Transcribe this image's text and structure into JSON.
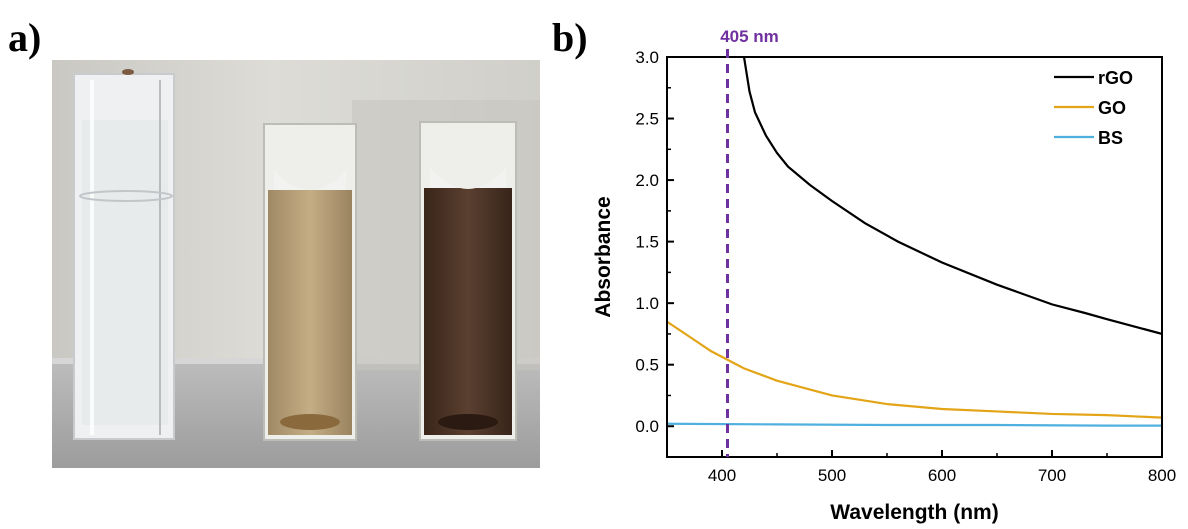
{
  "panels": {
    "a_label": "a)",
    "b_label": "b)"
  },
  "photo": {
    "description_icon": "cuvette-photo",
    "colors": {
      "background_top": "#d9d8d3",
      "bench": "#a8a8a8",
      "clear_liquid": "#eef0f1",
      "go_liquid": "#b59e78",
      "rgo_liquid": "#4a3427"
    }
  },
  "chart_data": {
    "type": "line",
    "xlabel": "Wavelength (nm)",
    "ylabel": "Absorbance",
    "xlim": [
      350,
      800
    ],
    "ylim": [
      -0.25,
      3.0
    ],
    "xticks": [
      400,
      500,
      600,
      700,
      800
    ],
    "yticks": [
      0.0,
      0.5,
      1.0,
      1.5,
      2.0,
      2.5,
      3.0
    ],
    "ytick_labels": [
      "0.0",
      "0.5",
      "1.0",
      "1.5",
      "2.0",
      "2.5",
      "3.0"
    ],
    "legend_position": "top-right",
    "annotation": {
      "text": "405 nm",
      "x": 405,
      "color": "#7030a0"
    },
    "series": [
      {
        "name": "rGO",
        "color": "#000000",
        "x": [
          420,
          425,
          430,
          440,
          450,
          460,
          480,
          500,
          530,
          560,
          600,
          650,
          700,
          730,
          750,
          800
        ],
        "y": [
          3.0,
          2.72,
          2.55,
          2.36,
          2.22,
          2.11,
          1.96,
          1.83,
          1.65,
          1.5,
          1.33,
          1.15,
          0.99,
          0.92,
          0.87,
          0.75
        ]
      },
      {
        "name": "GO",
        "color": "#e3a417",
        "x": [
          350,
          370,
          390,
          405,
          420,
          450,
          500,
          550,
          600,
          650,
          700,
          750,
          800
        ],
        "y": [
          0.85,
          0.73,
          0.61,
          0.54,
          0.47,
          0.37,
          0.25,
          0.18,
          0.14,
          0.12,
          0.1,
          0.09,
          0.07
        ]
      },
      {
        "name": "BS",
        "color": "#4fb0e0",
        "x": [
          350,
          450,
          550,
          650,
          750,
          800
        ],
        "y": [
          0.02,
          0.015,
          0.01,
          0.01,
          0.005,
          0.005
        ]
      }
    ]
  }
}
